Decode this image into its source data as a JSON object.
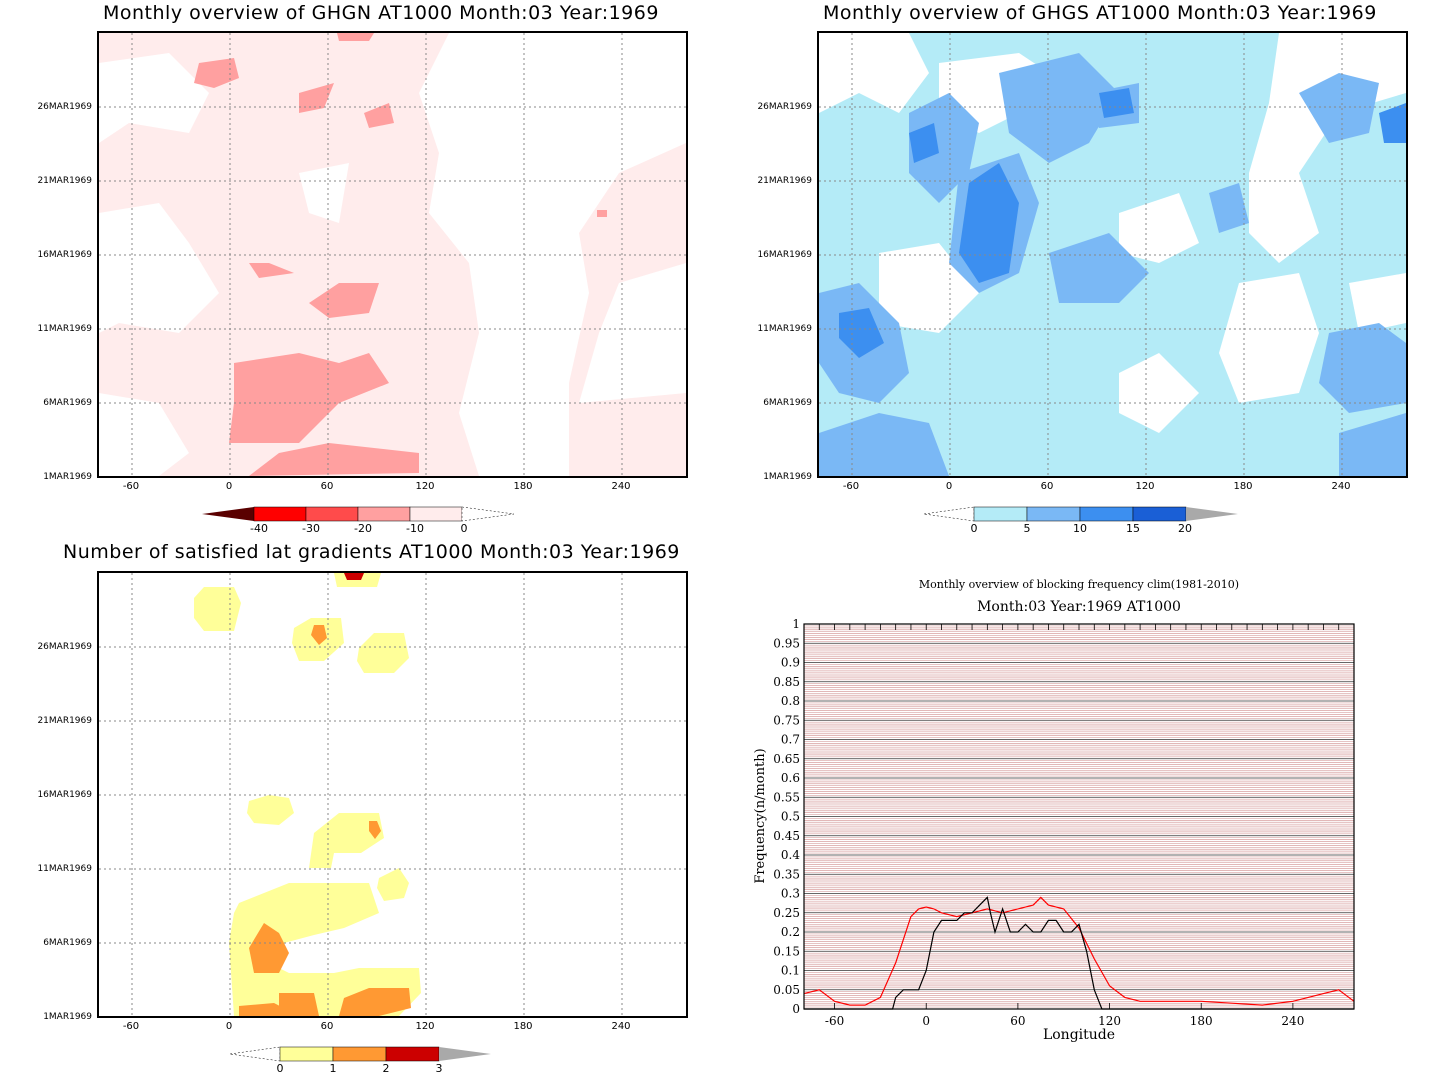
{
  "colors": {
    "red_scale": [
      "#5a0000",
      "#ff0000",
      "#ff4b4b",
      "#ffa0a0",
      "#ffecec"
    ],
    "blue_scale": [
      "#b4ebf7",
      "#7ab8f5",
      "#3c8ff0",
      "#1a5fd6"
    ],
    "yellow_scale": [
      "#ffff99",
      "#ff9933",
      "#cc0000"
    ],
    "neutral": "#a9a9a9"
  },
  "chart_data": [
    {
      "type": "heatmap",
      "title": "Monthly overview of GHGN AT1000 Month:03 Year:1969",
      "x_ticks": [
        "-60",
        "0",
        "60",
        "120",
        "180",
        "240"
      ],
      "y_ticks": [
        "1MAR1969",
        "6MAR1969",
        "11MAR1969",
        "16MAR1969",
        "21MAR1969",
        "26MAR1969"
      ],
      "colorbar": [
        "-40",
        "-30",
        "-20",
        "-10",
        "0"
      ]
    },
    {
      "type": "heatmap",
      "title": "Monthly overview of GHGS AT1000 Month:03 Year:1969",
      "x_ticks": [
        "-60",
        "0",
        "60",
        "120",
        "180",
        "240"
      ],
      "y_ticks": [
        "1MAR1969",
        "6MAR1969",
        "11MAR1969",
        "16MAR1969",
        "21MAR1969",
        "26MAR1969"
      ],
      "colorbar": [
        "0",
        "5",
        "10",
        "15",
        "20"
      ]
    },
    {
      "type": "heatmap",
      "title": "Number of satisfied lat gradients AT1000 Month:03 Year:1969",
      "x_ticks": [
        "-60",
        "0",
        "60",
        "120",
        "180",
        "240"
      ],
      "y_ticks": [
        "1MAR1969",
        "6MAR1969",
        "11MAR1969",
        "16MAR1969",
        "21MAR1969",
        "26MAR1969"
      ],
      "colorbar": [
        "0",
        "1",
        "2",
        "3"
      ]
    },
    {
      "type": "line",
      "title": "Monthly overview of blocking frequency clim(1981-2010)",
      "subtitle": "Month:03 Year:1969  AT1000",
      "xlabel": "Longitude",
      "ylabel": "Frequency(n/month)",
      "x_ticks": [
        "-60",
        "0",
        "60",
        "120",
        "180",
        "240"
      ],
      "y_ticks": [
        "0",
        "0.05",
        "0.1",
        "0.15",
        "0.2",
        "0.25",
        "0.3",
        "0.35",
        "0.4",
        "0.45",
        "0.5",
        "0.55",
        "0.6",
        "0.65",
        "0.7",
        "0.75",
        "0.8",
        "0.85",
        "0.9",
        "0.95",
        "1"
      ],
      "xlim": [
        -80,
        280
      ],
      "ylim": [
        0,
        1
      ],
      "series": [
        {
          "color": "#ff0000",
          "x": [
            -80,
            -70,
            -60,
            -50,
            -40,
            -30,
            -20,
            -10,
            -5,
            0,
            5,
            10,
            20,
            30,
            40,
            50,
            60,
            70,
            75,
            80,
            90,
            100,
            110,
            120,
            130,
            140,
            150,
            160,
            170,
            180,
            200,
            220,
            240,
            250,
            260,
            270,
            280
          ],
          "y": [
            0.04,
            0.05,
            0.02,
            0.01,
            0.01,
            0.03,
            0.12,
            0.24,
            0.26,
            0.265,
            0.26,
            0.25,
            0.24,
            0.25,
            0.26,
            0.25,
            0.26,
            0.27,
            0.29,
            0.27,
            0.26,
            0.21,
            0.13,
            0.06,
            0.03,
            0.02,
            0.02,
            0.02,
            0.02,
            0.02,
            0.015,
            0.01,
            0.02,
            0.03,
            0.04,
            0.05,
            0.02
          ]
        },
        {
          "color": "#000000",
          "x": [
            -80,
            -30,
            -22,
            -20,
            -15,
            -10,
            -5,
            0,
            5,
            10,
            15,
            20,
            25,
            30,
            35,
            40,
            42,
            45,
            50,
            55,
            60,
            65,
            70,
            75,
            80,
            85,
            90,
            95,
            100,
            105,
            110,
            115,
            120,
            280
          ],
          "y": [
            0,
            0,
            0,
            0.03,
            0.05,
            0.05,
            0.05,
            0.1,
            0.2,
            0.23,
            0.23,
            0.23,
            0.25,
            0.25,
            0.27,
            0.29,
            0.25,
            0.2,
            0.26,
            0.2,
            0.2,
            0.22,
            0.2,
            0.2,
            0.23,
            0.23,
            0.2,
            0.2,
            0.22,
            0.15,
            0.05,
            0,
            0,
            0
          ]
        }
      ]
    }
  ]
}
